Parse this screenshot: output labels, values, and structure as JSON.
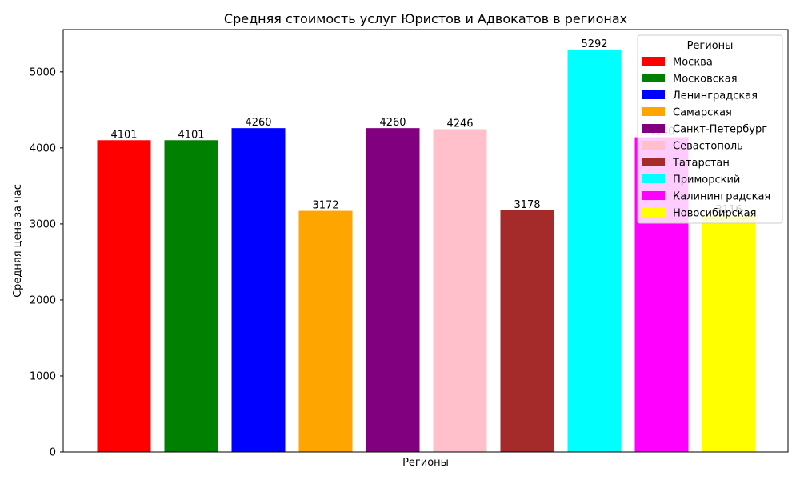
{
  "chart_data": {
    "type": "bar",
    "title": "Средняя стоимость услуг Юристов и Адвокатов в регионах",
    "xlabel": "Регионы",
    "ylabel": "Средняя цена за час",
    "ylim": [
      0,
      5556
    ],
    "yticks": [
      0,
      1000,
      2000,
      3000,
      4000,
      5000
    ],
    "grid": false,
    "legend_title": "Регионы",
    "legend_position": "top-right",
    "categories": [
      "Москва",
      "Московская",
      "Ленинградская",
      "Самарская",
      "Санкт-Петербург",
      "Севастополь",
      "Татарстан",
      "Приморский",
      "Калининградская",
      "Новосибирская"
    ],
    "values": [
      4101,
      4101,
      4260,
      3172,
      4260,
      4246,
      3178,
      5292,
      4140,
      3116
    ],
    "data_labels": [
      "4101",
      "4101",
      "4260",
      "3172",
      "4260",
      "4246",
      "3178",
      "5292",
      "4140",
      "3116"
    ],
    "colors": [
      "#ff0000",
      "#008000",
      "#0000ff",
      "#ffa500",
      "#800080",
      "#ffc0cb",
      "#a52a2a",
      "#00ffff",
      "#ff00ff",
      "#ffff00"
    ]
  }
}
